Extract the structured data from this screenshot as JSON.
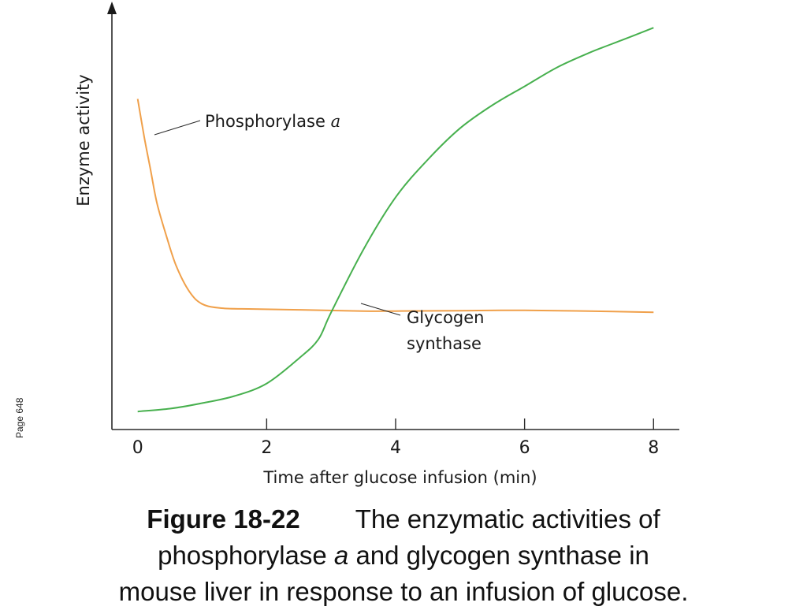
{
  "page_note": "Page 648",
  "caption": {
    "figure_number": "Figure 18-22",
    "line1_rest": "The enzymatic activities of",
    "line2_pre": "phosphorylase ",
    "line2_italic": "a",
    "line2_post": " and glycogen synthase in",
    "line3": "mouse liver in response to an infusion of glucose."
  },
  "chart_data": {
    "type": "line",
    "xlabel": "Time after glucose infusion (min)",
    "ylabel": "Enzyme activity",
    "xlim": [
      -0.4,
      8.4
    ],
    "ylim": [
      0,
      100
    ],
    "x_ticks": [
      0,
      2,
      4,
      6,
      8
    ],
    "x_tick_labels": [
      "0",
      "2",
      "4",
      "6",
      "8"
    ],
    "y_ticks_shown": false,
    "grid": false,
    "legend": "none (curves labeled directly)",
    "series": [
      {
        "name": "Phosphorylase a",
        "label_main": "Phosphorylase ",
        "label_italic": "a",
        "color": "#f0a04a",
        "x": [
          0.0,
          0.1,
          0.2,
          0.3,
          0.45,
          0.6,
          0.8,
          1.0,
          1.3,
          1.8,
          2.5,
          3.5,
          4.0,
          5.0,
          6.0,
          7.0,
          8.0
        ],
        "y": [
          79,
          70,
          62,
          54,
          46,
          39,
          33,
          30,
          29,
          28.8,
          28.6,
          28.3,
          28.3,
          28.4,
          28.5,
          28.3,
          28
        ]
      },
      {
        "name": "Glycogen synthase",
        "label_lines": [
          "Glycogen",
          "synthase"
        ],
        "color": "#47b04e",
        "x": [
          0.0,
          0.5,
          1.0,
          1.5,
          2.0,
          2.5,
          2.8,
          3.0,
          3.5,
          4.0,
          4.5,
          5.0,
          5.5,
          6.0,
          6.5,
          7.0,
          7.5,
          8.0
        ],
        "y": [
          4.3,
          5,
          6.3,
          8,
          11,
          17,
          21.5,
          28,
          43,
          55.5,
          64.5,
          72,
          77.5,
          82,
          86.5,
          90,
          93,
          96
        ]
      }
    ]
  }
}
